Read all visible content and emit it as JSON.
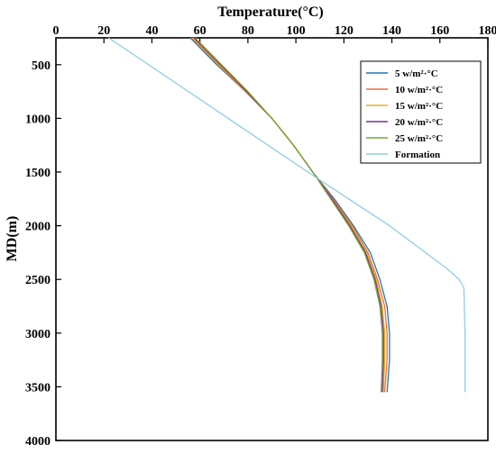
{
  "chart_data": {
    "type": "line",
    "title": "",
    "xlabel": "Temperature(°C)",
    "ylabel": "MD(m)",
    "xlim": [
      0,
      180
    ],
    "ylim": [
      4000,
      250
    ],
    "x_axis_position": "top",
    "y_inverted": true,
    "grid": false,
    "legend_position": "top-right",
    "x_ticks": [
      0,
      20,
      40,
      60,
      80,
      100,
      120,
      140,
      160,
      180
    ],
    "y_ticks": [
      500,
      1000,
      1500,
      2000,
      2500,
      3000,
      3500,
      4000
    ],
    "series": [
      {
        "name": "5 w/m²·°C",
        "color": "#1f77b4",
        "points": [
          [
            56,
            250
          ],
          [
            67,
            500
          ],
          [
            79,
            750
          ],
          [
            90,
            1000
          ],
          [
            99,
            1250
          ],
          [
            107,
            1500
          ],
          [
            116,
            1750
          ],
          [
            124,
            2000
          ],
          [
            131,
            2250
          ],
          [
            135,
            2500
          ],
          [
            138,
            2750
          ],
          [
            139,
            3000
          ],
          [
            139,
            3250
          ],
          [
            138,
            3550
          ]
        ]
      },
      {
        "name": "10 w/m²·°C",
        "color": "#e8703a",
        "points": [
          [
            56.5,
            250
          ],
          [
            67.5,
            500
          ],
          [
            79,
            750
          ],
          [
            90,
            1000
          ],
          [
            99,
            1250
          ],
          [
            107,
            1500
          ],
          [
            115.5,
            1750
          ],
          [
            123.5,
            2000
          ],
          [
            130,
            2250
          ],
          [
            134,
            2500
          ],
          [
            137,
            2750
          ],
          [
            138,
            3000
          ],
          [
            138,
            3250
          ],
          [
            137,
            3550
          ]
        ]
      },
      {
        "name": "15 w/m²·°C",
        "color": "#edb120",
        "points": [
          [
            57,
            250
          ],
          [
            68,
            500
          ],
          [
            79.5,
            750
          ],
          [
            90,
            1000
          ],
          [
            99,
            1250
          ],
          [
            107,
            1500
          ],
          [
            115,
            1750
          ],
          [
            123,
            2000
          ],
          [
            129.5,
            2250
          ],
          [
            133.5,
            2500
          ],
          [
            136,
            2750
          ],
          [
            137,
            3000
          ],
          [
            137,
            3250
          ],
          [
            136.5,
            3550
          ]
        ]
      },
      {
        "name": "20 w/m²·°C",
        "color": "#7e2f8e",
        "points": [
          [
            57.5,
            250
          ],
          [
            68.5,
            500
          ],
          [
            79.5,
            750
          ],
          [
            90,
            1000
          ],
          [
            99,
            1250
          ],
          [
            107,
            1500
          ],
          [
            115,
            1750
          ],
          [
            122.5,
            2000
          ],
          [
            129,
            2250
          ],
          [
            133,
            2500
          ],
          [
            135.5,
            2750
          ],
          [
            136.5,
            3000
          ],
          [
            136.5,
            3250
          ],
          [
            136,
            3550
          ]
        ]
      },
      {
        "name": "25 w/m²·°C",
        "color": "#77ac30",
        "points": [
          [
            58,
            250
          ],
          [
            69,
            500
          ],
          [
            80,
            750
          ],
          [
            90,
            1000
          ],
          [
            99,
            1250
          ],
          [
            107,
            1500
          ],
          [
            114.5,
            1750
          ],
          [
            122,
            2000
          ],
          [
            128.5,
            2250
          ],
          [
            132.5,
            2500
          ],
          [
            135,
            2750
          ],
          [
            136,
            3000
          ],
          [
            136,
            3250
          ],
          [
            135.5,
            3550
          ]
        ]
      },
      {
        "name": "Formation",
        "color": "#8ecde6",
        "points": [
          [
            22,
            250
          ],
          [
            105,
            1500
          ],
          [
            139,
            2000
          ],
          [
            163,
            2400
          ],
          [
            168,
            2500
          ],
          [
            170,
            2580
          ],
          [
            170.5,
            3000
          ],
          [
            170.5,
            3550
          ]
        ]
      }
    ]
  }
}
